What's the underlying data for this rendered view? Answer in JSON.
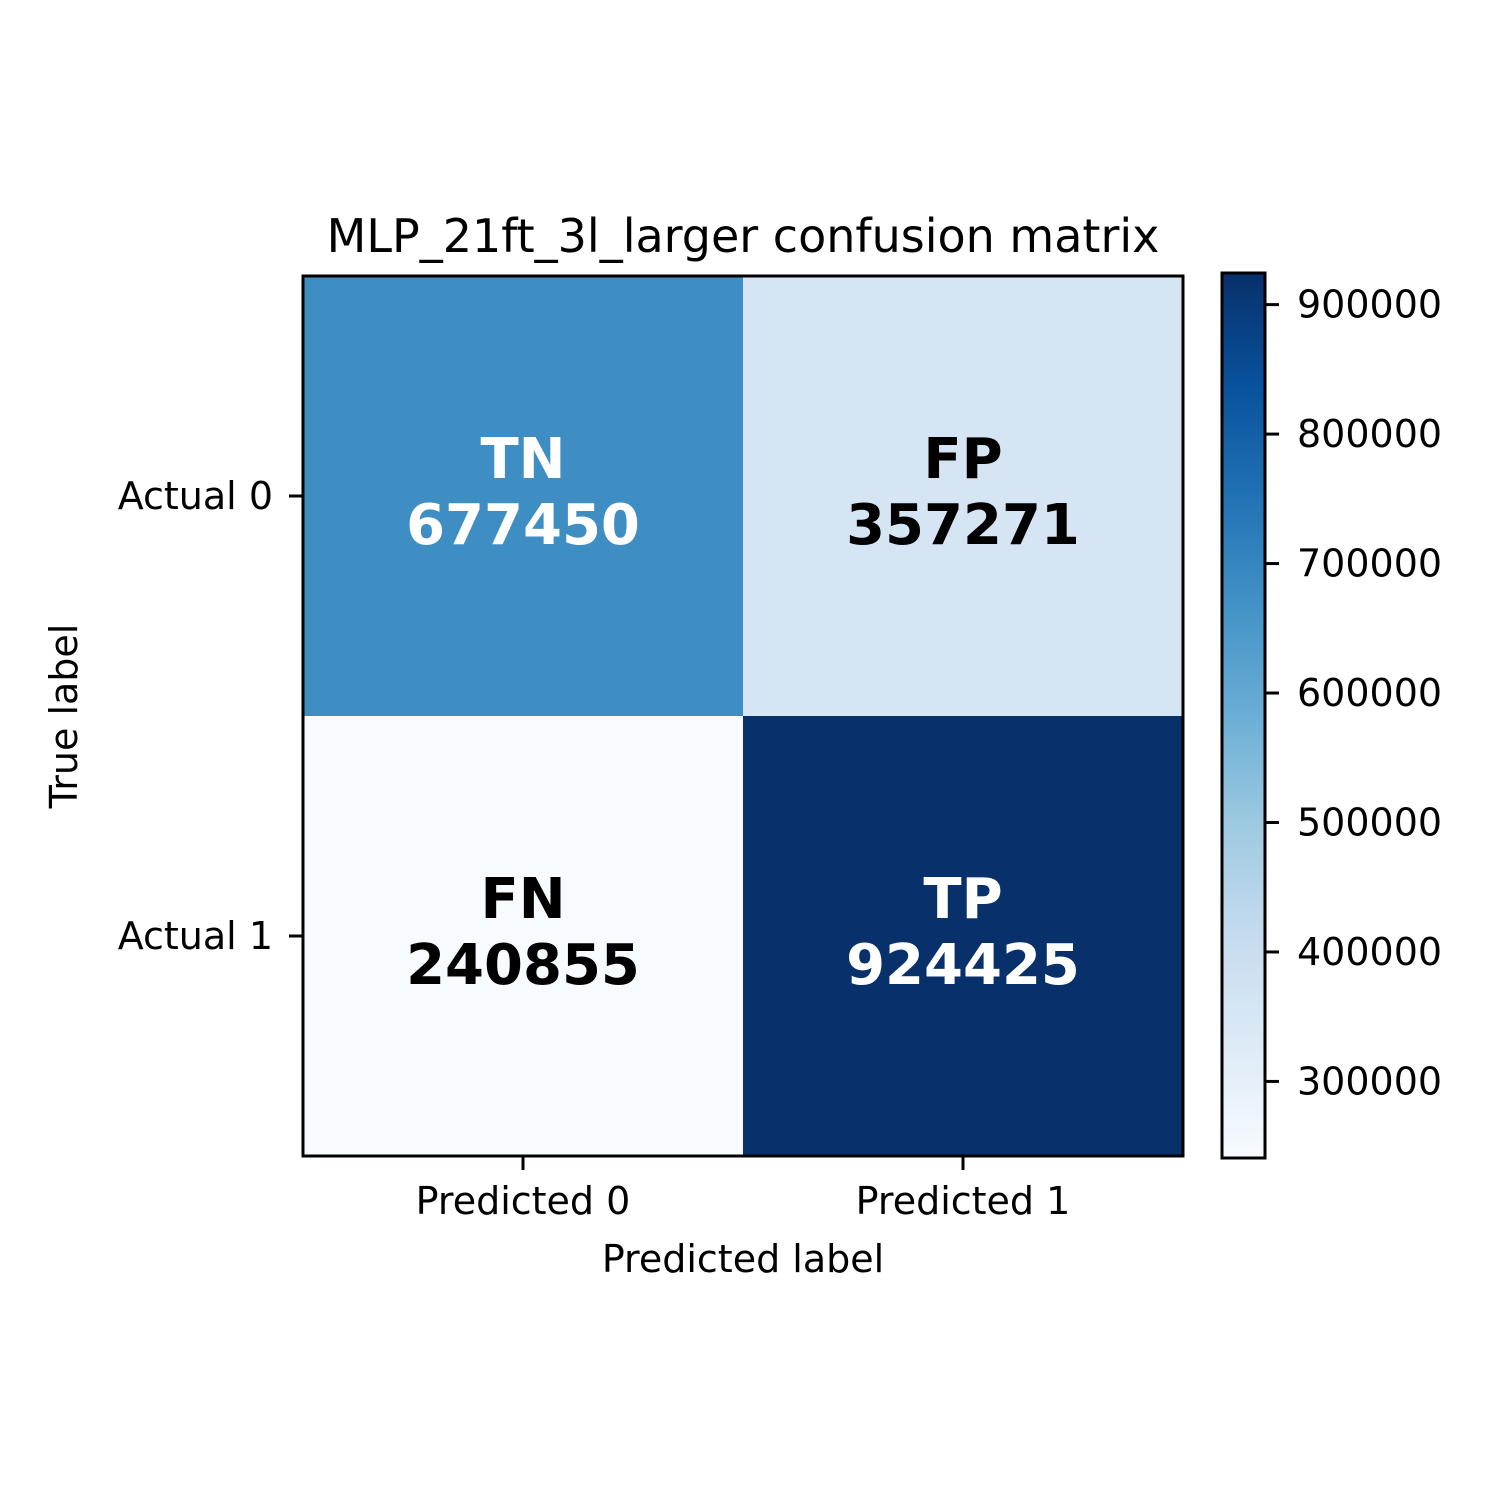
{
  "chart_data": {
    "type": "heatmap",
    "title": "MLP_21ft_3l_larger confusion matrix",
    "xlabel": "Predicted label",
    "ylabel": "True label",
    "x_categories": [
      "Predicted 0",
      "Predicted 1"
    ],
    "y_categories": [
      "Actual 0",
      "Actual 1"
    ],
    "cells": [
      [
        {
          "tag": "TN",
          "value": 677450
        },
        {
          "tag": "FP",
          "value": 357271
        }
      ],
      [
        {
          "tag": "FN",
          "value": 240855
        },
        {
          "tag": "TP",
          "value": 924425
        }
      ]
    ],
    "colormap": "Blues",
    "colorbar": {
      "range": [
        240855,
        924425
      ],
      "ticks": [
        300000,
        400000,
        500000,
        600000,
        700000,
        800000,
        900000
      ],
      "tick_labels": [
        "300000",
        "400000",
        "500000",
        "600000",
        "700000",
        "800000",
        "900000"
      ]
    },
    "colors": {
      "text_on_dark": "#ffffff",
      "text_on_light": "#000000"
    }
  }
}
